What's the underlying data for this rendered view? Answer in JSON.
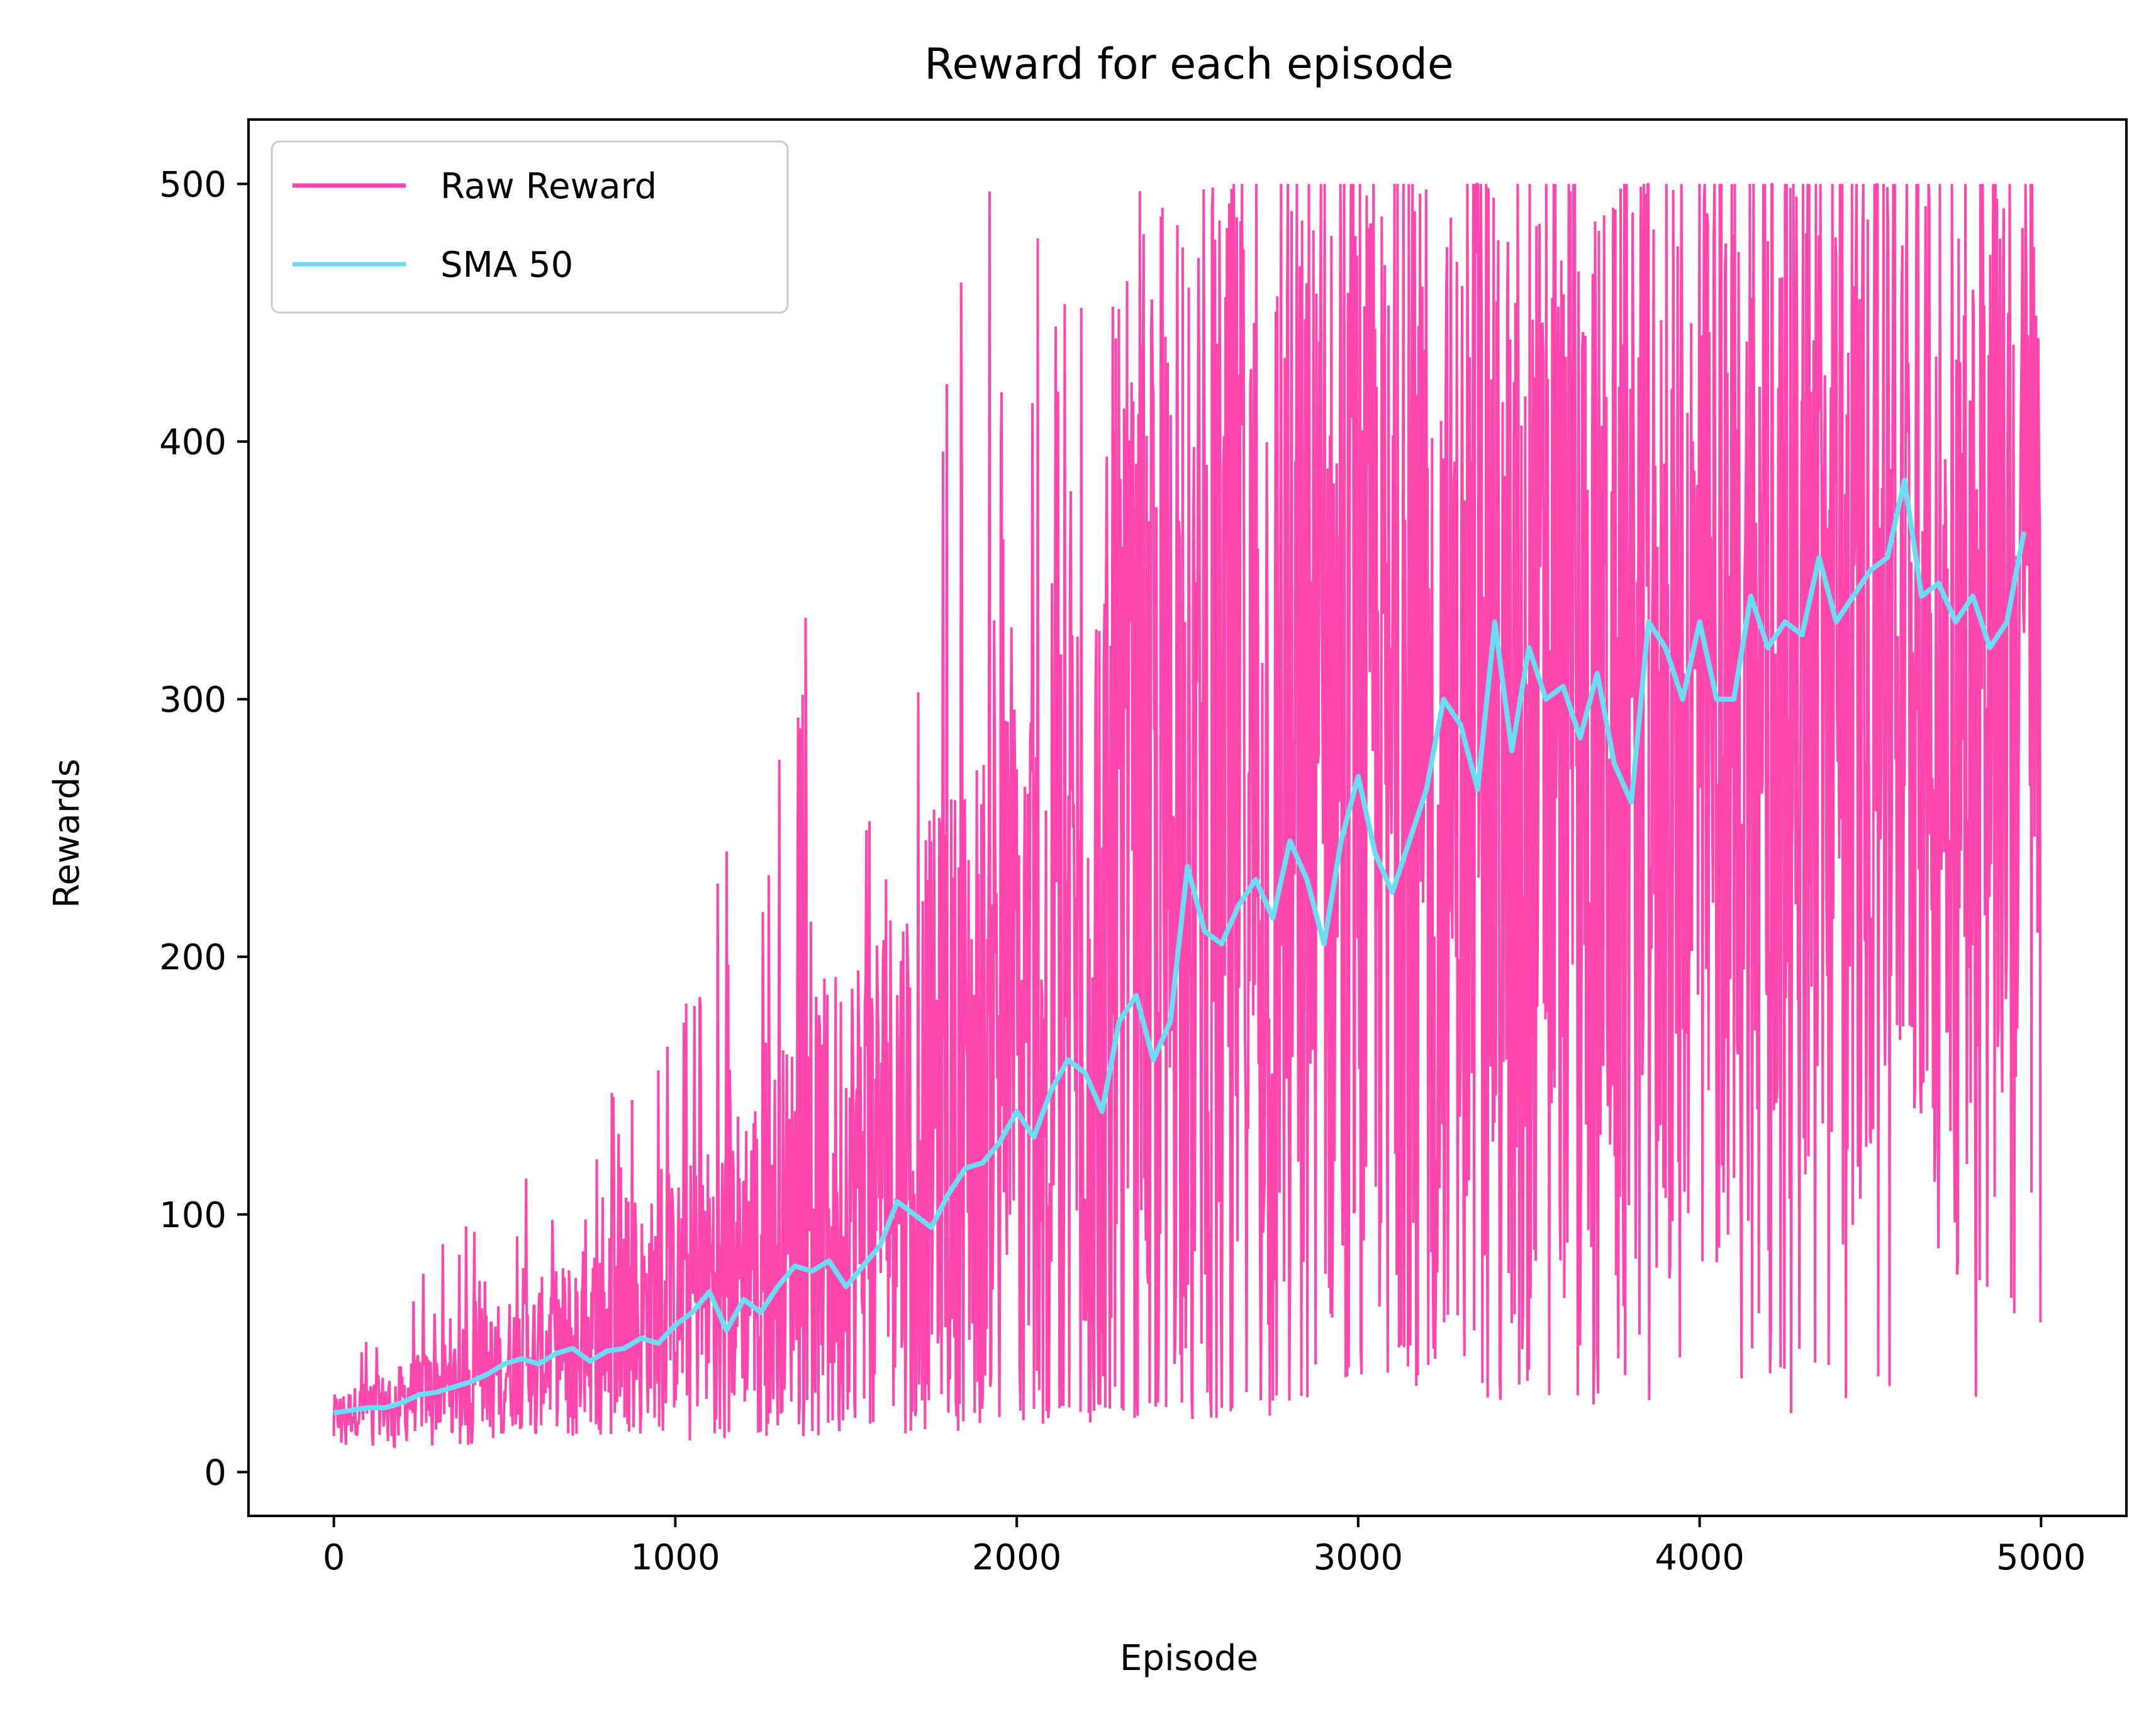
{
  "chart_data": {
    "type": "line",
    "title": "Reward for each episode",
    "xlabel": "Episode",
    "ylabel": "Rewards",
    "xlim": [
      -250,
      5250
    ],
    "ylim": [
      -17,
      525
    ],
    "xticks": [
      0,
      1000,
      2000,
      3000,
      4000,
      5000
    ],
    "yticks": [
      0,
      100,
      200,
      300,
      400,
      500
    ],
    "grid": false,
    "legend": "top-left",
    "series": [
      {
        "name": "Raw Reward",
        "color": "#ff46ac",
        "style": "raw-envelope",
        "x": [
          0,
          100,
          200,
          300,
          400,
          500,
          600,
          700,
          800,
          900,
          1000,
          1100,
          1200,
          1300,
          1400,
          1500,
          1600,
          1700,
          1800,
          1900,
          2000,
          2100,
          2200,
          2300,
          2400,
          2500,
          2600,
          2700,
          2800,
          2900,
          3000,
          3100,
          3200,
          3300,
          3400,
          3500,
          3600,
          3700,
          3800,
          3900,
          4000,
          4100,
          4200,
          4300,
          4400,
          4500,
          4600,
          4700,
          4800,
          4900,
          5000
        ],
        "upper": [
          38,
          60,
          105,
          85,
          105,
          127,
          125,
          163,
          150,
          163,
          175,
          242,
          256,
          284,
          353,
          320,
          330,
          300,
          482,
          500,
          500,
          500,
          500,
          500,
          500,
          500,
          500,
          500,
          500,
          500,
          500,
          500,
          500,
          500,
          500,
          500,
          500,
          500,
          500,
          500,
          500,
          500,
          500,
          500,
          500,
          500,
          500,
          500,
          500,
          500,
          500
        ],
        "body_high": [
          30,
          36,
          42,
          50,
          58,
          68,
          75,
          85,
          95,
          105,
          115,
          130,
          148,
          165,
          185,
          205,
          225,
          245,
          268,
          290,
          315,
          345,
          375,
          410,
          445,
          480,
          500,
          500,
          500,
          500,
          500,
          500,
          500,
          500,
          500,
          500,
          500,
          500,
          500,
          500,
          500,
          500,
          500,
          500,
          500,
          500,
          500,
          500,
          500,
          500,
          500
        ],
        "body_low": [
          14,
          14,
          15,
          15,
          16,
          16,
          17,
          17,
          18,
          19,
          20,
          20,
          21,
          22,
          23,
          24,
          24,
          25,
          25,
          26,
          26,
          27,
          27,
          28,
          28,
          29,
          29,
          30,
          32,
          35,
          40,
          45,
          50,
          55,
          60,
          65,
          70,
          75,
          80,
          85,
          90,
          95,
          100,
          105,
          110,
          115,
          120,
          125,
          130,
          135,
          160
        ],
        "lower": [
          9,
          9,
          9,
          10,
          10,
          10,
          11,
          11,
          11,
          12,
          12,
          12,
          13,
          13,
          14,
          14,
          15,
          15,
          16,
          16,
          17,
          18,
          18,
          19,
          19,
          20,
          20,
          21,
          21,
          22,
          22,
          22,
          23,
          23,
          23,
          24,
          24,
          24,
          25,
          25,
          25,
          25,
          24,
          22,
          22,
          22,
          22,
          22,
          22,
          22,
          32
        ]
      },
      {
        "name": "SMA 50",
        "color": "#6adcf3",
        "x": [
          0,
          50,
          100,
          150,
          200,
          250,
          300,
          350,
          400,
          450,
          500,
          550,
          600,
          650,
          700,
          750,
          800,
          850,
          900,
          950,
          1000,
          1050,
          1100,
          1150,
          1200,
          1250,
          1300,
          1350,
          1400,
          1450,
          1500,
          1550,
          1600,
          1650,
          1700,
          1750,
          1800,
          1850,
          1900,
          1950,
          2000,
          2050,
          2100,
          2150,
          2200,
          2250,
          2300,
          2350,
          2400,
          2450,
          2500,
          2550,
          2600,
          2650,
          2700,
          2750,
          2800,
          2850,
          2900,
          2950,
          3000,
          3050,
          3100,
          3150,
          3200,
          3250,
          3300,
          3350,
          3400,
          3450,
          3500,
          3550,
          3600,
          3650,
          3700,
          3750,
          3800,
          3850,
          3900,
          3950,
          4000,
          4050,
          4100,
          4150,
          4200,
          4250,
          4300,
          4350,
          4400,
          4450,
          4500,
          4550,
          4600,
          4650,
          4700,
          4750,
          4800,
          4850,
          4900,
          4950
        ],
        "y": [
          23,
          24,
          25,
          25,
          27,
          30,
          31,
          33,
          35,
          38,
          42,
          44,
          42,
          46,
          48,
          43,
          47,
          48,
          52,
          50,
          57,
          62,
          70,
          55,
          67,
          62,
          72,
          80,
          78,
          82,
          72,
          80,
          88,
          105,
          100,
          95,
          108,
          118,
          120,
          128,
          140,
          130,
          148,
          160,
          155,
          140,
          175,
          185,
          160,
          175,
          235,
          210,
          205,
          220,
          230,
          215,
          245,
          230,
          205,
          245,
          270,
          240,
          225,
          245,
          265,
          300,
          290,
          265,
          330,
          280,
          320,
          300,
          305,
          285,
          310,
          275,
          260,
          330,
          320,
          300,
          330,
          300,
          300,
          340,
          320,
          330,
          325,
          355,
          330,
          340,
          350,
          355,
          385,
          340,
          345,
          330,
          340,
          320,
          330,
          365
        ]
      }
    ]
  }
}
